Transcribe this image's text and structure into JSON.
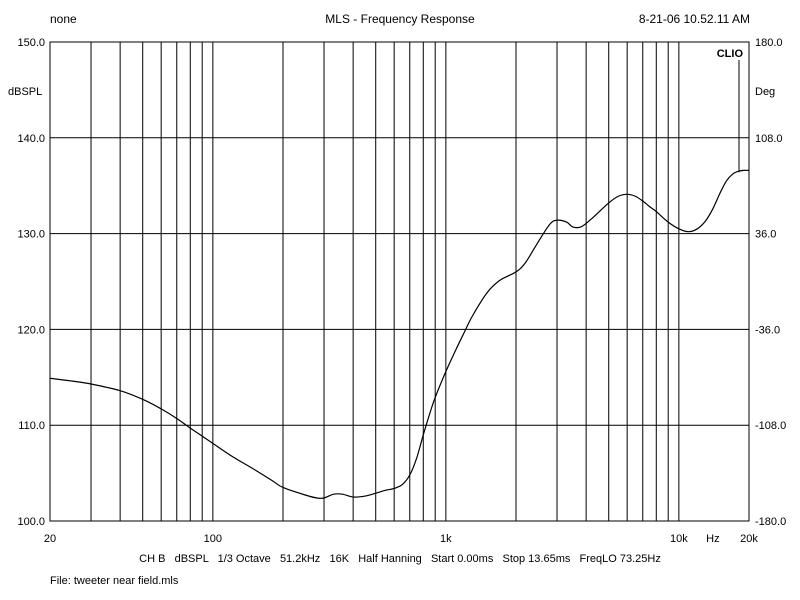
{
  "header": {
    "left": "none",
    "title": "MLS - Frequency Response",
    "datetime": "8-21-06 10.52.11 AM"
  },
  "brand": "CLIO",
  "footer": {
    "settings": "CH B   dBSPL   1/3 Octave   51.2kHz   16K   Half Hanning   Start 0.00ms   Stop 13.65ms   FreqLO 73.25Hz",
    "file": "File: tweeter near field.mls"
  },
  "colors": {
    "background": "#ffffff",
    "grid": "#000000",
    "trace": "#000000"
  },
  "chart_data": {
    "type": "line",
    "title": "MLS - Frequency Response",
    "x_scale": "log",
    "xlim": [
      20,
      20000
    ],
    "x_tick_labels": [
      {
        "value": 20,
        "label": "20"
      },
      {
        "value": 100,
        "label": "100"
      },
      {
        "value": 1000,
        "label": "1k"
      },
      {
        "value": 10000,
        "label": "10k"
      },
      {
        "value": 20000,
        "label": "20k"
      }
    ],
    "x_unit_label": "Hz",
    "y_left": {
      "label": "dBSPL",
      "ylim": [
        100,
        150
      ],
      "ticks": [
        "100.0",
        "110.0",
        "120.0",
        "130.0",
        "140.0",
        "150.0"
      ]
    },
    "y_right": {
      "label": "Deg",
      "ylim": [
        -180,
        180
      ],
      "ticks": [
        "-180.0",
        "-108.0",
        "-36.0",
        "36.0",
        "108.0",
        "180.0"
      ]
    },
    "grid": true,
    "series": [
      {
        "x": [
          20,
          25,
          30,
          40,
          50,
          60,
          70,
          80,
          100,
          120,
          150,
          180,
          200,
          250,
          280,
          300,
          330,
          360,
          400,
          450,
          500,
          550,
          600,
          650,
          700,
          750,
          800,
          850,
          900,
          1000,
          1100,
          1200,
          1300,
          1500,
          1700,
          2000,
          2200,
          2500,
          2800,
          3000,
          3300,
          3500,
          3800,
          4200,
          5000,
          5500,
          6000,
          6500,
          7000,
          7500,
          8000,
          9000,
          10000,
          11000,
          12000,
          13000,
          14000,
          15000,
          16000,
          17000,
          18000,
          19000,
          20000
        ],
        "y": [
          114.9,
          114.6,
          114.3,
          113.6,
          112.7,
          111.7,
          110.7,
          109.7,
          108.1,
          106.8,
          105.4,
          104.2,
          103.5,
          102.7,
          102.4,
          102.4,
          102.8,
          102.8,
          102.5,
          102.6,
          102.9,
          103.2,
          103.4,
          103.8,
          104.8,
          106.6,
          109.0,
          111.1,
          112.9,
          115.6,
          117.8,
          119.7,
          121.4,
          123.8,
          125.1,
          126.0,
          127.0,
          129.2,
          131.0,
          131.4,
          131.2,
          130.7,
          130.7,
          131.5,
          133.2,
          133.9,
          134.1,
          133.9,
          133.4,
          132.8,
          132.3,
          131.2,
          130.5,
          130.2,
          130.5,
          131.3,
          132.6,
          134.2,
          135.5,
          136.2,
          136.5,
          136.6,
          136.6
        ]
      }
    ]
  }
}
